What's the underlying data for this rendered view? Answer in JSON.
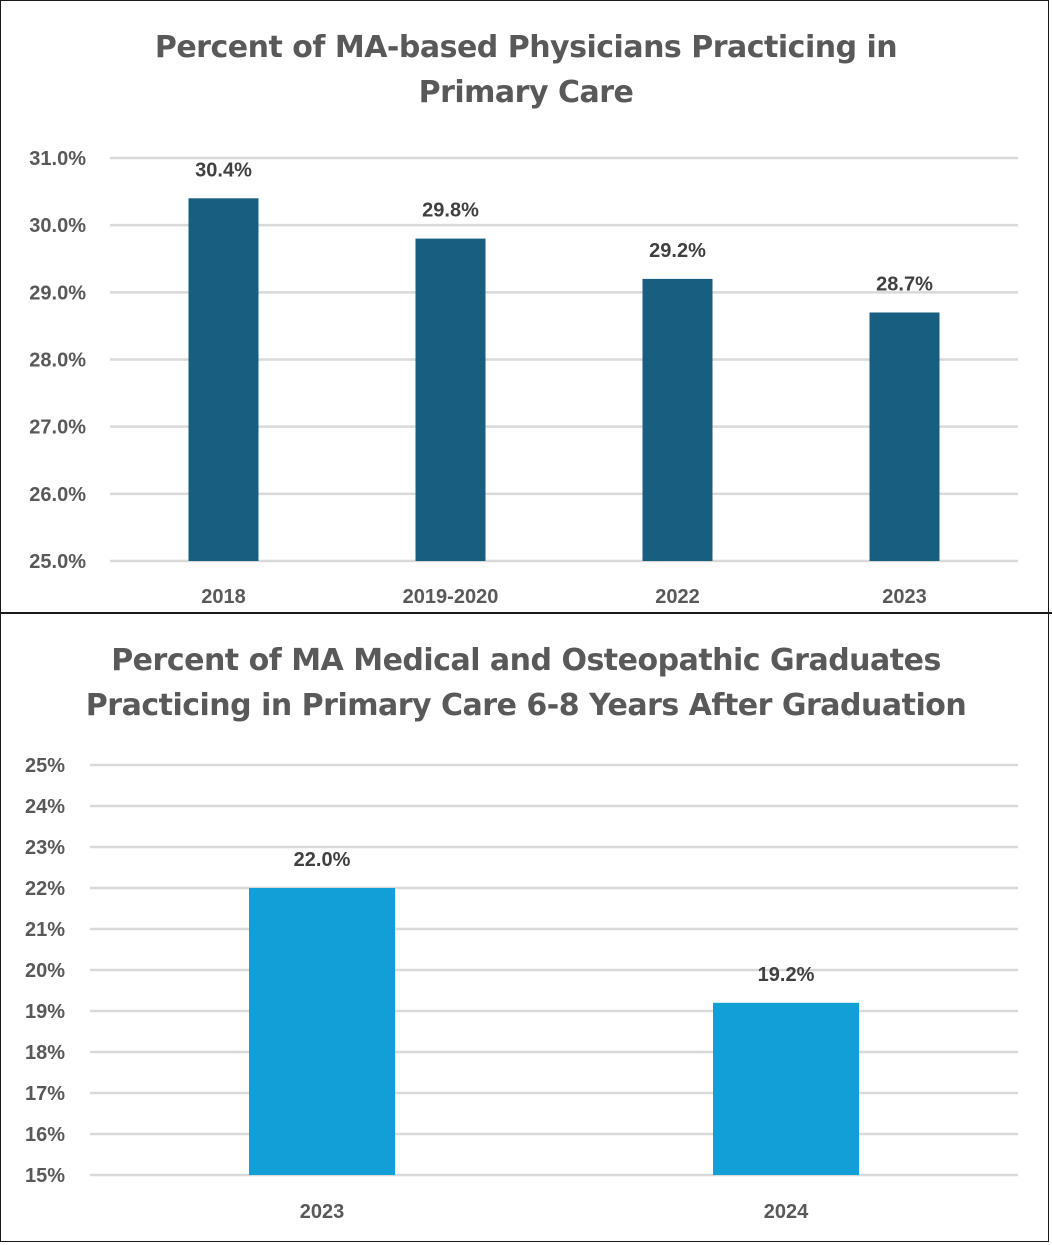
{
  "chart_data": [
    {
      "type": "bar",
      "title": "Percent of MA-based Physicians Practicing in Primary Care",
      "title_lines": [
        "Percent of MA-based Physicians Practicing in",
        "Primary Care"
      ],
      "categories": [
        "2018",
        "2019-2020",
        "2022",
        "2023"
      ],
      "values": [
        30.4,
        29.8,
        29.2,
        28.7
      ],
      "data_labels": [
        "30.4%",
        "29.8%",
        "29.2%",
        "28.7%"
      ],
      "xlabel": "",
      "ylabel": "",
      "ylim": [
        25.0,
        31.0
      ],
      "yticks": [
        25.0,
        26.0,
        27.0,
        28.0,
        29.0,
        30.0,
        31.0
      ],
      "ytick_labels": [
        "25.0%",
        "26.0%",
        "27.0%",
        "28.0%",
        "29.0%",
        "30.0%",
        "31.0%"
      ],
      "grid": true,
      "legend": "none",
      "bar_color": "#175E80"
    },
    {
      "type": "bar",
      "title": "Percent of MA Medical and Osteopathic Graduates Practicing in Primary Care 6-8 Years After Graduation",
      "title_lines": [
        "Percent of MA Medical and Osteopathic Graduates",
        "Practicing in Primary Care 6-8 Years After Graduation"
      ],
      "categories": [
        "2023",
        "2024"
      ],
      "values": [
        22.0,
        19.2
      ],
      "data_labels": [
        "22.0%",
        "19.2%"
      ],
      "xlabel": "",
      "ylabel": "",
      "ylim": [
        15,
        25
      ],
      "yticks": [
        15,
        16,
        17,
        18,
        19,
        20,
        21,
        22,
        23,
        24,
        25
      ],
      "ytick_labels": [
        "15%",
        "16%",
        "17%",
        "18%",
        "19%",
        "20%",
        "21%",
        "22%",
        "23%",
        "24%",
        "25%"
      ],
      "grid": true,
      "legend": "none",
      "bar_color": "#129ED6"
    }
  ]
}
